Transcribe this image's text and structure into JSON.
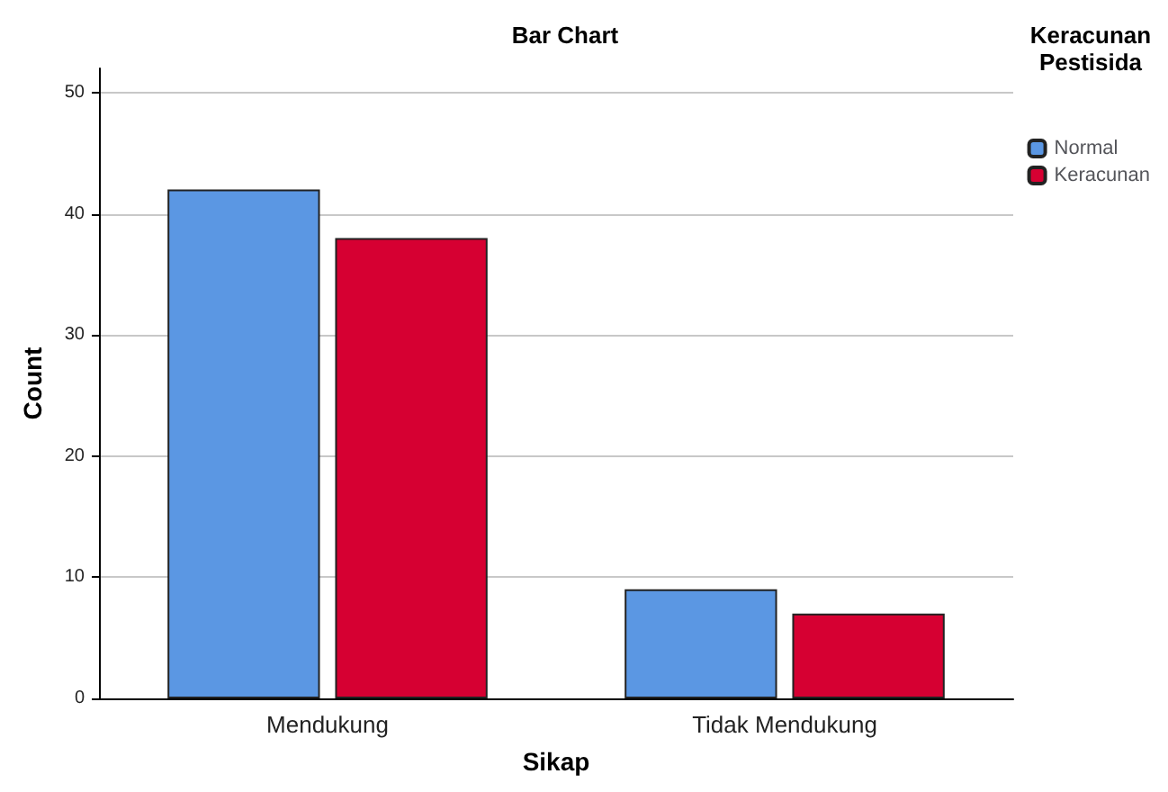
{
  "chart_data": {
    "type": "bar",
    "title": "Bar Chart",
    "xlabel": "Sikap",
    "ylabel": "Count",
    "legend_title": "Keracunan\nPestisida",
    "categories": [
      "Mendukung",
      "Tidak Mendukung"
    ],
    "series": [
      {
        "name": "Normal",
        "color": "#5b97e3",
        "values": [
          42,
          9
        ]
      },
      {
        "name": "Keracunan",
        "color": "#d60032",
        "values": [
          38,
          7
        ]
      }
    ],
    "ylim": [
      0,
      52
    ],
    "yticks": [
      0,
      10,
      20,
      30,
      40,
      50
    ],
    "grid": "y",
    "legend": "right"
  }
}
